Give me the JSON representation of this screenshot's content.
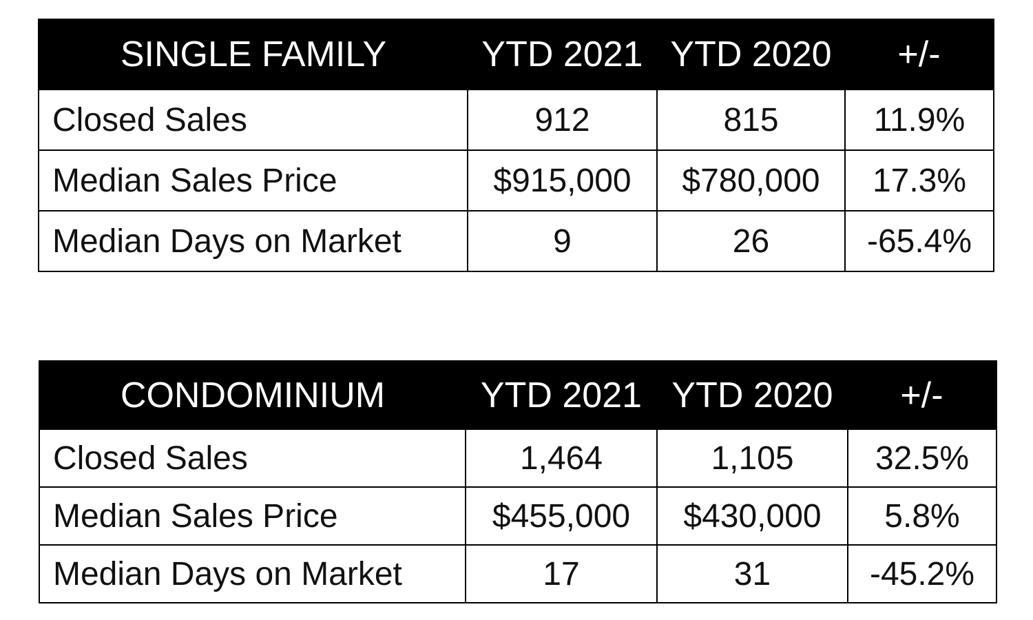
{
  "chart_data": [
    {
      "type": "table",
      "title": "SINGLE FAMILY",
      "columns": [
        "SINGLE FAMILY",
        "YTD 2021",
        "YTD 2020",
        "+/-"
      ],
      "rows": [
        [
          "Closed Sales",
          "912",
          "815",
          "11.9%"
        ],
        [
          "Median Sales Price",
          "$915,000",
          "$780,000",
          "17.3%"
        ],
        [
          "Median Days on Market",
          "9",
          "26",
          "-65.4%"
        ]
      ]
    },
    {
      "type": "table",
      "title": "CONDOMINIUM",
      "columns": [
        "CONDOMINIUM",
        "YTD 2021",
        "YTD 2020",
        "+/-"
      ],
      "rows": [
        [
          "Closed Sales",
          "1,464",
          "1,105",
          "32.5%"
        ],
        [
          "Median Sales Price",
          "$455,000",
          "$430,000",
          "5.8%"
        ],
        [
          "Median Days on Market",
          "17",
          "31",
          "-45.2%"
        ]
      ]
    }
  ],
  "colors": {
    "header_background": "#000000",
    "header_text": "#ffffff",
    "cell_text": "#111111",
    "border": "#000000"
  }
}
